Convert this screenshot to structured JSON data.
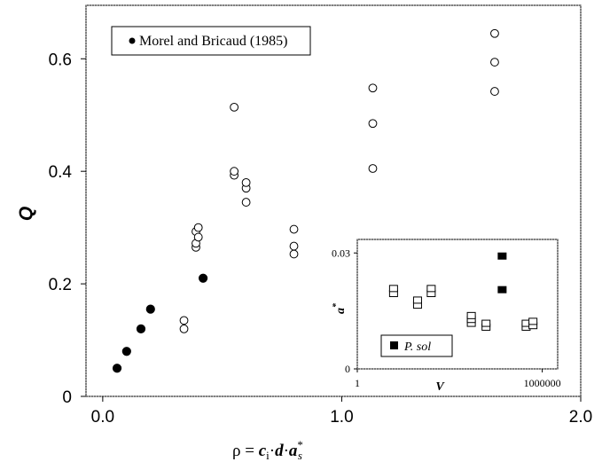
{
  "chart_data": [
    {
      "type": "scatter",
      "title": "",
      "xlabel": "ρ = c_i·d·a*_s",
      "xlabel_parts": {
        "rho": "ρ = ",
        "c": "c",
        "c_sub": "i",
        "d": "d",
        "a": "a",
        "a_sup": "*",
        "a_sub": "s",
        "dot": "·"
      },
      "ylabel": "Q",
      "xlim": [
        0,
        2.0
      ],
      "ylim": [
        0,
        0.7
      ],
      "xticks": [
        "0.0",
        "1.0",
        "2.0"
      ],
      "xtick_values": [
        0,
        1.0,
        2.0
      ],
      "yticks": [
        "0",
        "0.2",
        "0.4",
        "0.6"
      ],
      "ytick_values": [
        0,
        0.2,
        0.4,
        0.6
      ],
      "grid": false,
      "legend_position": "top-left",
      "series": [
        {
          "name": "Morel and Bricaud (1985)",
          "marker": "filled-circle",
          "color": "#000000",
          "points": [
            {
              "x": 0.06,
              "y": 0.05
            },
            {
              "x": 0.1,
              "y": 0.08
            },
            {
              "x": 0.16,
              "y": 0.12
            },
            {
              "x": 0.2,
              "y": 0.155
            },
            {
              "x": 0.42,
              "y": 0.21
            }
          ]
        },
        {
          "name": "",
          "marker": "open-circle",
          "color": "#000000",
          "points": [
            {
              "x": 0.34,
              "y": 0.12
            },
            {
              "x": 0.34,
              "y": 0.135
            },
            {
              "x": 0.39,
              "y": 0.265
            },
            {
              "x": 0.39,
              "y": 0.272
            },
            {
              "x": 0.39,
              "y": 0.293
            },
            {
              "x": 0.4,
              "y": 0.283
            },
            {
              "x": 0.4,
              "y": 0.3
            },
            {
              "x": 0.55,
              "y": 0.393
            },
            {
              "x": 0.55,
              "y": 0.4
            },
            {
              "x": 0.55,
              "y": 0.514
            },
            {
              "x": 0.6,
              "y": 0.345
            },
            {
              "x": 0.6,
              "y": 0.37
            },
            {
              "x": 0.6,
              "y": 0.38
            },
            {
              "x": 0.8,
              "y": 0.253
            },
            {
              "x": 0.8,
              "y": 0.267
            },
            {
              "x": 0.8,
              "y": 0.297
            },
            {
              "x": 1.13,
              "y": 0.405
            },
            {
              "x": 1.13,
              "y": 0.485
            },
            {
              "x": 1.13,
              "y": 0.548
            },
            {
              "x": 1.64,
              "y": 0.542
            },
            {
              "x": 1.64,
              "y": 0.594
            },
            {
              "x": 1.64,
              "y": 0.645
            }
          ]
        }
      ]
    },
    {
      "type": "scatter",
      "title": "",
      "inset": true,
      "xlabel": "V",
      "ylabel": "a*",
      "ylabel_parts": {
        "a": "a",
        "sup": "*"
      },
      "xscale": "log",
      "xlim": [
        1,
        1000000
      ],
      "ylim": [
        0,
        0.03
      ],
      "xticks": [
        "1",
        "1000000"
      ],
      "xtick_values": [
        1,
        1000000
      ],
      "yticks": [
        "0",
        "0.03"
      ],
      "ytick_values": [
        0,
        0.03
      ],
      "grid": false,
      "legend_position": "bottom-left",
      "series": [
        {
          "name": "",
          "marker": "open-square",
          "color": "#000000",
          "points": [
            {
              "x": 15,
              "y": 0.0195
            },
            {
              "x": 15,
              "y": 0.0208
            },
            {
              "x": 90,
              "y": 0.0165
            },
            {
              "x": 90,
              "y": 0.0178
            },
            {
              "x": 250,
              "y": 0.0195
            },
            {
              "x": 250,
              "y": 0.0208
            },
            {
              "x": 5000,
              "y": 0.0118
            },
            {
              "x": 5000,
              "y": 0.0128
            },
            {
              "x": 5000,
              "y": 0.0138
            },
            {
              "x": 15000,
              "y": 0.0108
            },
            {
              "x": 15000,
              "y": 0.0118
            },
            {
              "x": 300000,
              "y": 0.0108
            },
            {
              "x": 300000,
              "y": 0.0118
            },
            {
              "x": 500000,
              "y": 0.0112
            },
            {
              "x": 500000,
              "y": 0.0123
            }
          ]
        },
        {
          "name": "P. sol",
          "marker": "filled-square",
          "color": "#000000",
          "points": [
            {
              "x": 50000,
              "y": 0.0205
            },
            {
              "x": 50000,
              "y": 0.0292
            }
          ]
        }
      ]
    }
  ]
}
